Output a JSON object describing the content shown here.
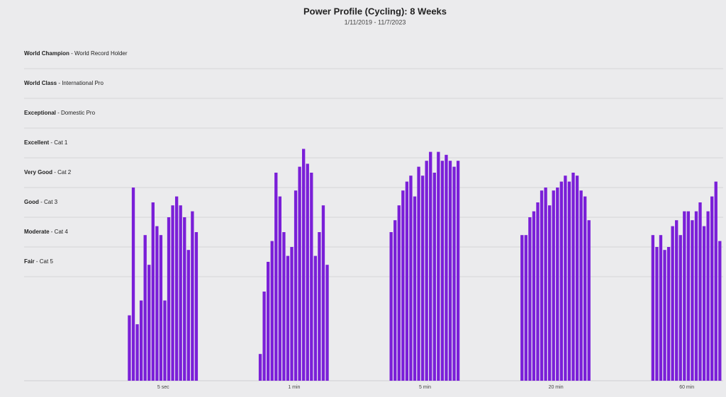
{
  "chart_data": {
    "type": "grouped-bar",
    "title": "Power Profile (Cycling): 8 Weeks",
    "subtitle": "1/11/2019 - 11/7/2023",
    "color": "#7a1fd8",
    "ylim": [
      0,
      11.5
    ],
    "levels": [
      {
        "name": "World Champion",
        "description": "World Record Holder",
        "value": 10.5
      },
      {
        "name": "World Class",
        "description": "International Pro",
        "value": 9.5
      },
      {
        "name": "Exceptional",
        "description": "Domestic Pro",
        "value": 8.5
      },
      {
        "name": "Excellent",
        "description": "Cat 1",
        "value": 7.5
      },
      {
        "name": "Very Good",
        "description": "Cat 2",
        "value": 6.5
      },
      {
        "name": "Good",
        "description": "Cat 3",
        "value": 5.5
      },
      {
        "name": "Moderate",
        "description": "Cat 4",
        "value": 4.5
      },
      {
        "name": "Fair",
        "description": "Cat 5",
        "value": 3.5
      }
    ],
    "groups": [
      {
        "label": "5 sec",
        "values": [
          2.2,
          6.5,
          1.9,
          2.7,
          4.9,
          3.9,
          6.0,
          5.2,
          4.9,
          2.7,
          5.5,
          5.9,
          6.2,
          5.9,
          5.5,
          4.4,
          5.7,
          5.0
        ]
      },
      {
        "label": "1 min",
        "values": [
          0.9,
          3.0,
          4.0,
          4.7,
          7.0,
          6.2,
          5.0,
          4.2,
          4.5,
          6.4,
          7.2,
          7.8,
          7.3,
          7.0,
          4.2,
          5.0,
          5.9,
          3.9
        ]
      },
      {
        "label": "5 min",
        "values": [
          5.0,
          5.4,
          5.9,
          6.4,
          6.7,
          6.9,
          6.2,
          7.2,
          6.9,
          7.4,
          7.7,
          7.0,
          7.7,
          7.4,
          7.6,
          7.4,
          7.2,
          7.4
        ]
      },
      {
        "label": "20 min",
        "values": [
          4.9,
          4.9,
          5.5,
          5.7,
          6.0,
          6.4,
          6.5,
          5.9,
          6.4,
          6.5,
          6.7,
          6.9,
          6.7,
          7.0,
          6.9,
          6.4,
          6.2,
          5.4
        ]
      },
      {
        "label": "60 min",
        "values": [
          4.9,
          4.5,
          4.9,
          4.4,
          4.5,
          5.2,
          5.4,
          4.9,
          5.7,
          5.7,
          5.4,
          5.7,
          6.0,
          5.2,
          5.7,
          6.2,
          6.7,
          4.7
        ]
      }
    ]
  }
}
